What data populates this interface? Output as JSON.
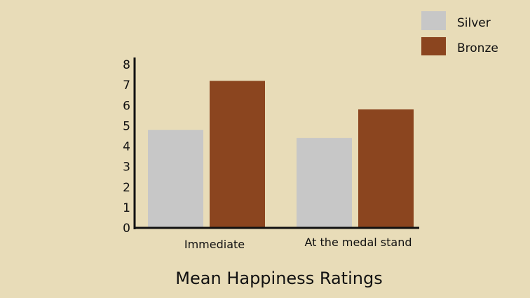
{
  "chart_data": {
    "type": "bar",
    "title": "Mean Happiness Ratings",
    "xlabel": "",
    "ylabel": "",
    "categories": [
      "Immediate",
      "At the medal stand"
    ],
    "series": [
      {
        "name": "Silver",
        "values": [
          4.8,
          4.4
        ],
        "color": "#C7C7C7"
      },
      {
        "name": "Bronze",
        "values": [
          7.2,
          5.8
        ],
        "color": "#8B451F"
      }
    ],
    "y_ticks": [
      "0",
      "1",
      "2",
      "3",
      "4",
      "5",
      "6",
      "7",
      "8"
    ],
    "ylim": [
      0,
      8
    ],
    "grid": false,
    "legend_position": "top-right"
  },
  "colors": {
    "background": "#E8DCB8",
    "axis": "#111111",
    "text": "#111111"
  }
}
